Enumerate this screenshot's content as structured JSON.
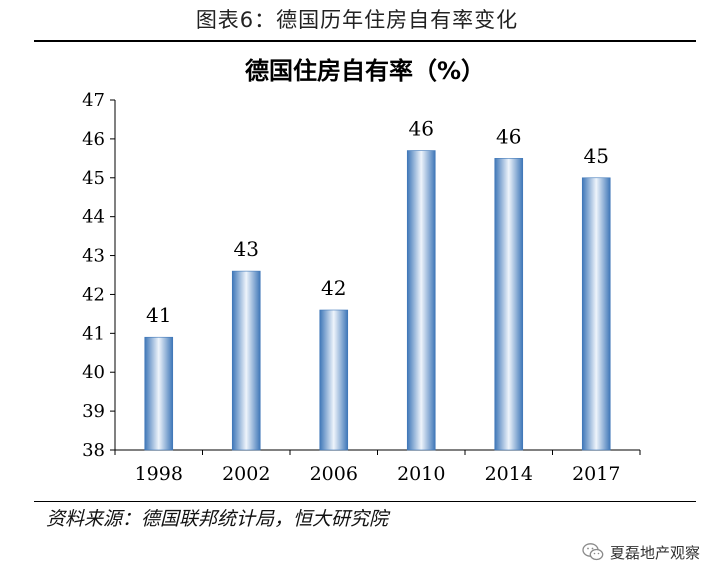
{
  "figure": {
    "caption": "图表6：德国历年住房自有率变化",
    "source": "资料来源：德国联邦统计局，恒大研究院",
    "watermark": "夏磊地产观察",
    "watermark_icon": "wechat-icon"
  },
  "colors": {
    "bar_edge": "#3f77b8",
    "bar_center": "#eef4fb",
    "axis": "#000000"
  },
  "chart_data": {
    "type": "bar",
    "title": "德国住房自有率（%）",
    "xlabel": "",
    "ylabel": "",
    "categories": [
      "1998",
      "2002",
      "2006",
      "2010",
      "2014",
      "2017"
    ],
    "values": [
      40.9,
      42.6,
      41.6,
      45.7,
      45.5,
      45.0
    ],
    "data_labels": [
      "41",
      "43",
      "42",
      "46",
      "46",
      "45"
    ],
    "ylim": [
      38,
      47
    ],
    "yticks": [
      "38",
      "39",
      "40",
      "41",
      "42",
      "43",
      "44",
      "45",
      "46",
      "47"
    ],
    "grid": false,
    "legend": "none"
  }
}
